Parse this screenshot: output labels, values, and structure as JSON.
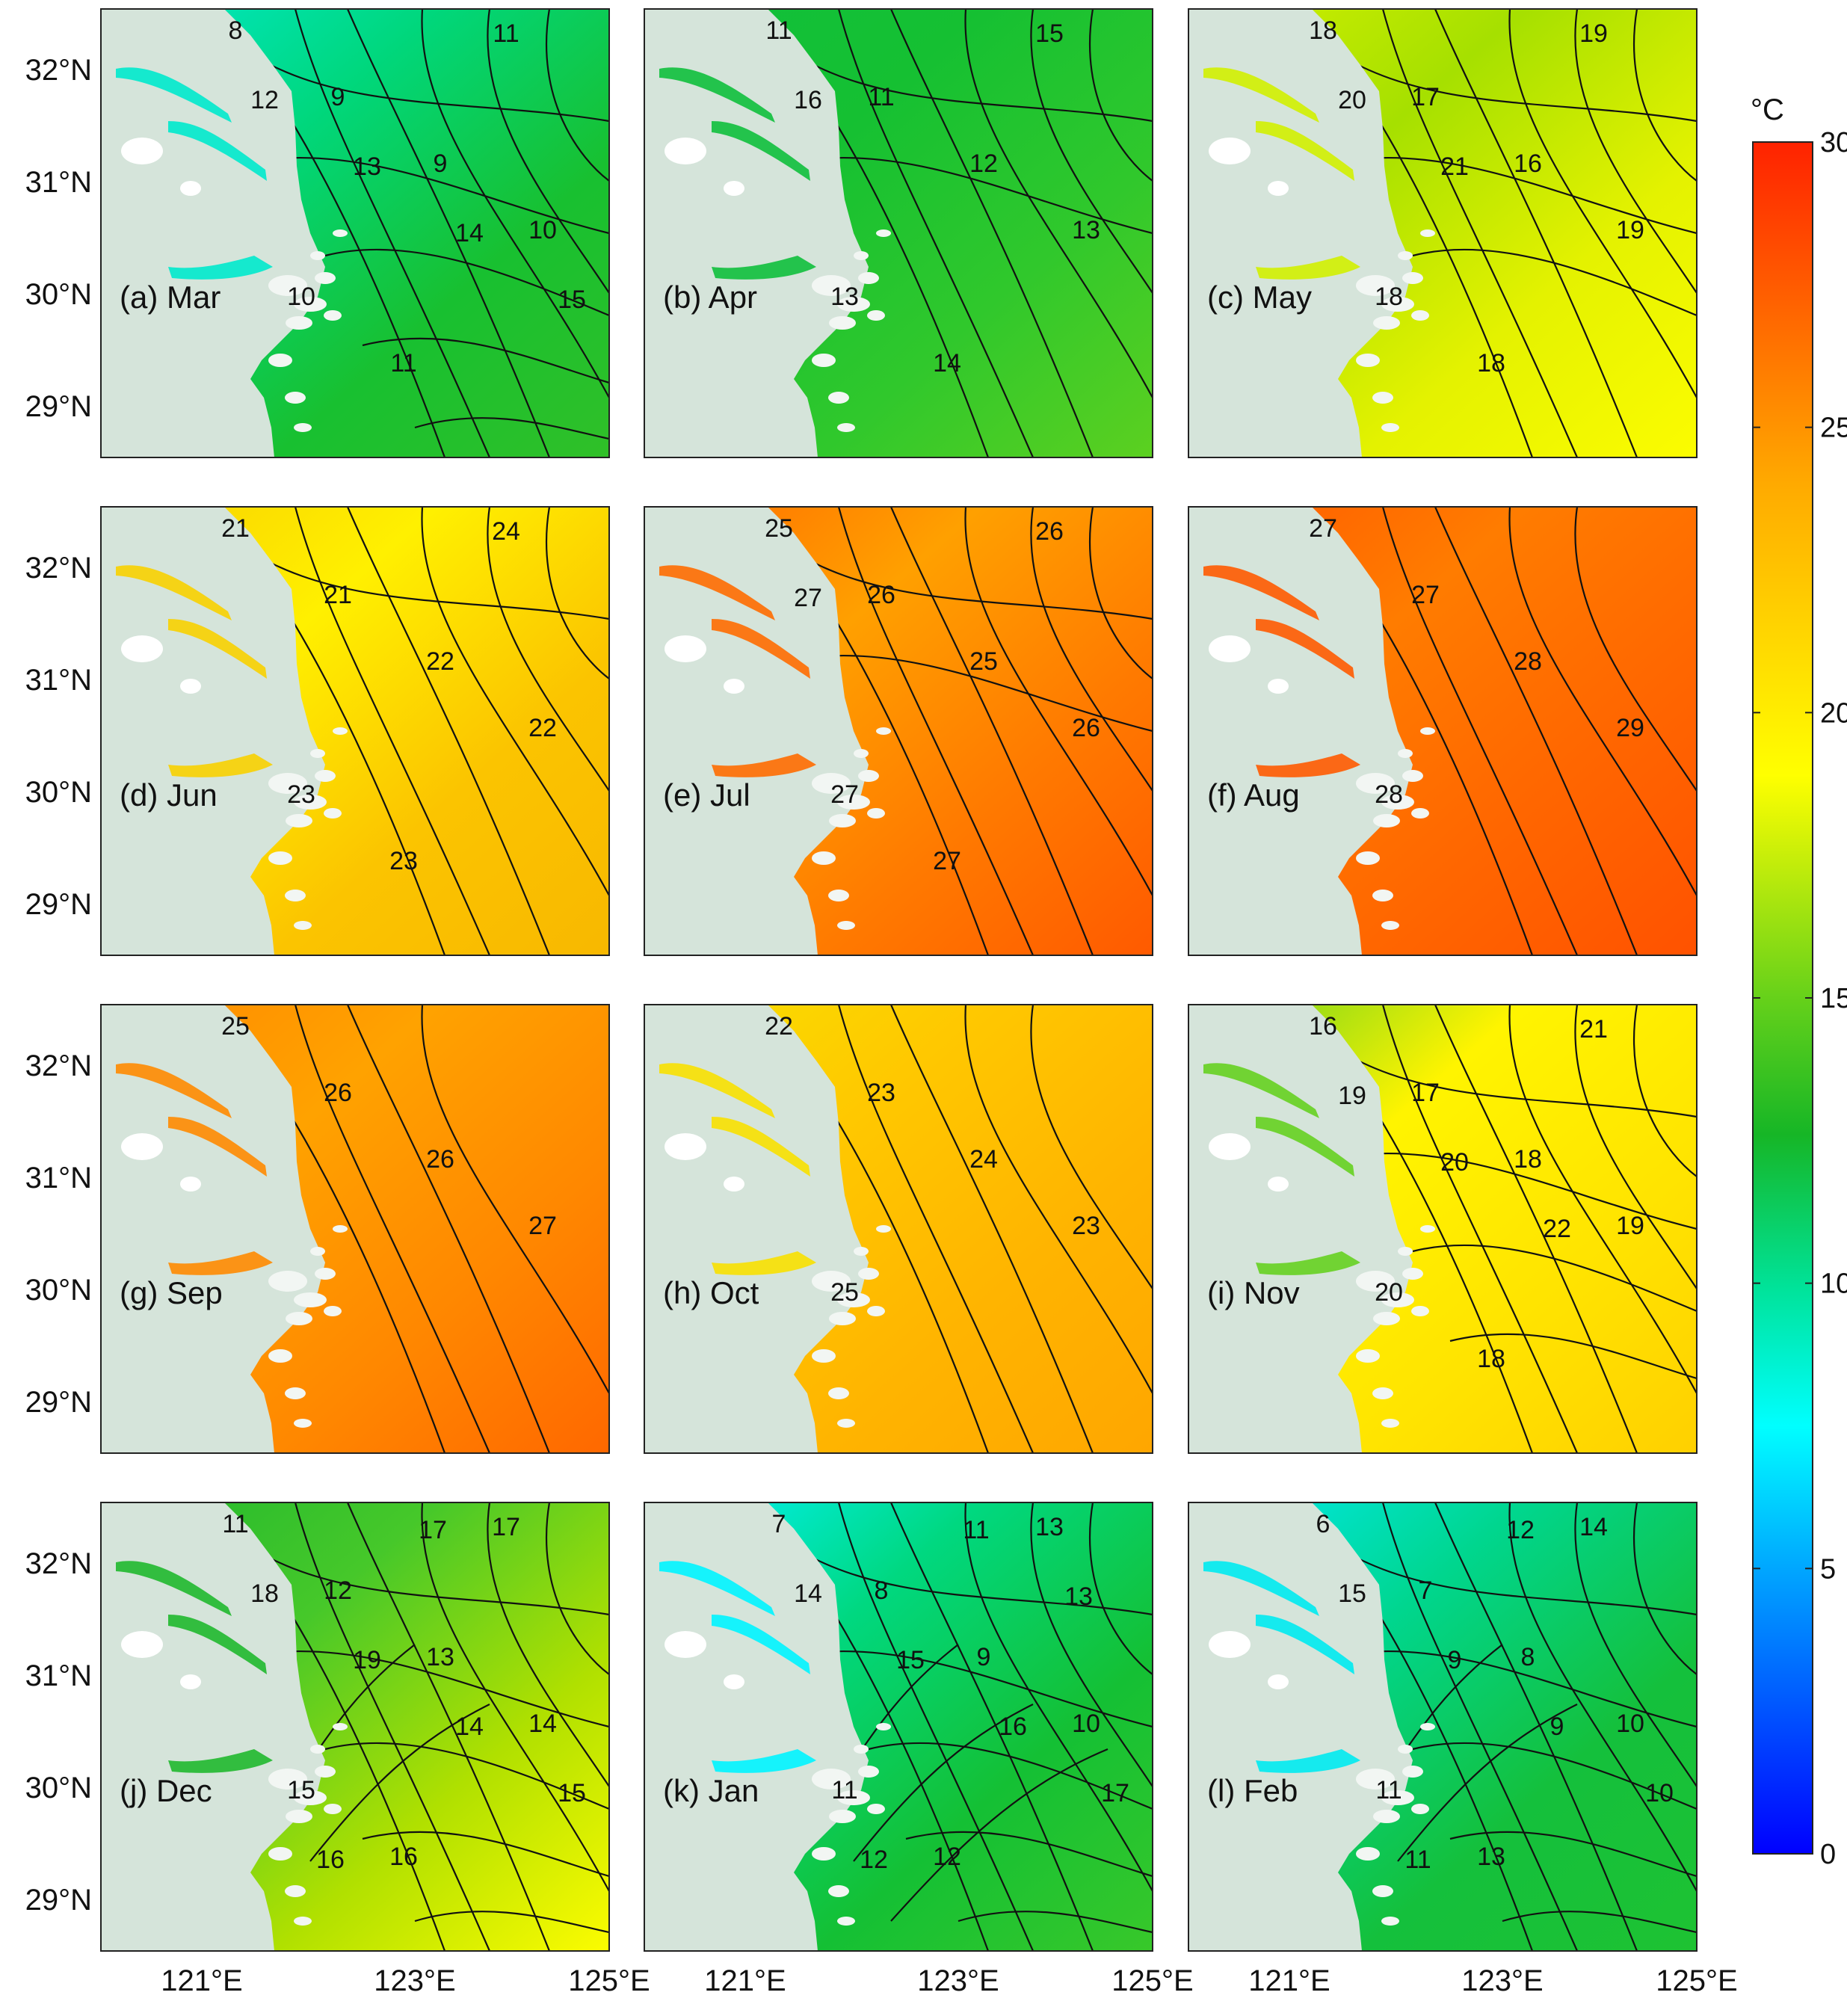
{
  "figure": {
    "axis": {
      "lat_ticks": [
        "32°N",
        "31°N",
        "30°N",
        "29°N"
      ],
      "lon_ticks": [
        "121°E",
        "123°E",
        "125°E"
      ]
    },
    "colorbar": {
      "unit": "°C",
      "range": [
        0,
        30
      ],
      "ticks": [
        "0",
        "5",
        "10",
        "15",
        "20",
        "25",
        "30"
      ],
      "colormap": "jet (blue-cyan-green-yellow-orange-red)",
      "stops": [
        "#0000ff",
        "#00c8ff",
        "#00ffff",
        "#00e67a",
        "#17b822",
        "#ffff00",
        "#ff9900",
        "#ff0000"
      ]
    },
    "land_color": "#d5e4da",
    "panels": [
      {
        "label": "(a) Mar",
        "month": "Mar",
        "colors": [
          "#00e9cc",
          "#00d77c",
          "#18c030",
          "#30c028"
        ],
        "contours": [
          "8",
          "9",
          "9",
          "10",
          "10",
          "11",
          "11",
          "12",
          "13",
          "14",
          "15"
        ]
      },
      {
        "label": "(b) Apr",
        "month": "Apr",
        "colors": [
          "#10bf3c",
          "#15c032",
          "#30c82c",
          "#5cd020"
        ],
        "contours": [
          "11",
          "11",
          "12",
          "13",
          "13",
          "14",
          "15",
          "16"
        ]
      },
      {
        "label": "(c) May",
        "month": "May",
        "colors": [
          "#d2f000",
          "#a6e000",
          "#e4f200",
          "#fcfc00"
        ],
        "contours": [
          "18",
          "17",
          "16",
          "19",
          "18",
          "18",
          "19",
          "20",
          "21"
        ]
      },
      {
        "label": "(d) Jun",
        "month": "Jun",
        "colors": [
          "#f8d000",
          "#fff000",
          "#fbc400",
          "#f8b800"
        ],
        "contours": [
          "21",
          "21",
          "22",
          "22",
          "23",
          "23",
          "24"
        ]
      },
      {
        "label": "(e) Jul",
        "month": "Jul",
        "colors": [
          "#ff6c00",
          "#ffa000",
          "#ff7a00",
          "#ff5a00"
        ],
        "contours": [
          "25",
          "26",
          "25",
          "26",
          "27",
          "27",
          "26",
          "27"
        ]
      },
      {
        "label": "(f) Aug",
        "month": "Aug",
        "colors": [
          "#ff5a00",
          "#ff7c00",
          "#ff6600",
          "#ff5200"
        ],
        "contours": [
          "27",
          "27",
          "28",
          "29",
          "28"
        ]
      },
      {
        "label": "(g) Sep",
        "month": "Sep",
        "colors": [
          "#ff8a00",
          "#ffa200",
          "#ff8800",
          "#ff6800"
        ],
        "contours": [
          "25",
          "26",
          "26",
          "27"
        ]
      },
      {
        "label": "(h) Oct",
        "month": "Oct",
        "colors": [
          "#f8e000",
          "#ffc800",
          "#ffb400",
          "#ffa600"
        ],
        "contours": [
          "22",
          "23",
          "24",
          "23",
          "25"
        ]
      },
      {
        "label": "(i) Nov",
        "month": "Nov",
        "colors": [
          "#66d020",
          "#fff400",
          "#ffe400",
          "#ffd000"
        ],
        "contours": [
          "16",
          "17",
          "18",
          "19",
          "20",
          "18",
          "21",
          "19",
          "20",
          "22"
        ]
      },
      {
        "label": "(j) Dec",
        "month": "Dec",
        "colors": [
          "#20b82e",
          "#46c82a",
          "#b0e000",
          "#fcfc00"
        ],
        "contours": [
          "11",
          "12",
          "13",
          "14",
          "15",
          "16",
          "17",
          "18",
          "19",
          "14",
          "15",
          "16",
          "17"
        ]
      },
      {
        "label": "(k) Jan",
        "month": "Jan",
        "colors": [
          "#00f4ff",
          "#00d880",
          "#14c034",
          "#38c82a"
        ],
        "contours": [
          "7",
          "8",
          "9",
          "10",
          "11",
          "12",
          "13",
          "14",
          "15",
          "16",
          "17",
          "12",
          "11",
          "13"
        ]
      },
      {
        "label": "(l) Feb",
        "month": "Feb",
        "colors": [
          "#00eaf0",
          "#00d68e",
          "#14c03c",
          "#1ec232"
        ],
        "contours": [
          "6",
          "7",
          "8",
          "10",
          "11",
          "13",
          "14",
          "15",
          "9",
          "9",
          "10",
          "11",
          "12"
        ]
      }
    ]
  }
}
